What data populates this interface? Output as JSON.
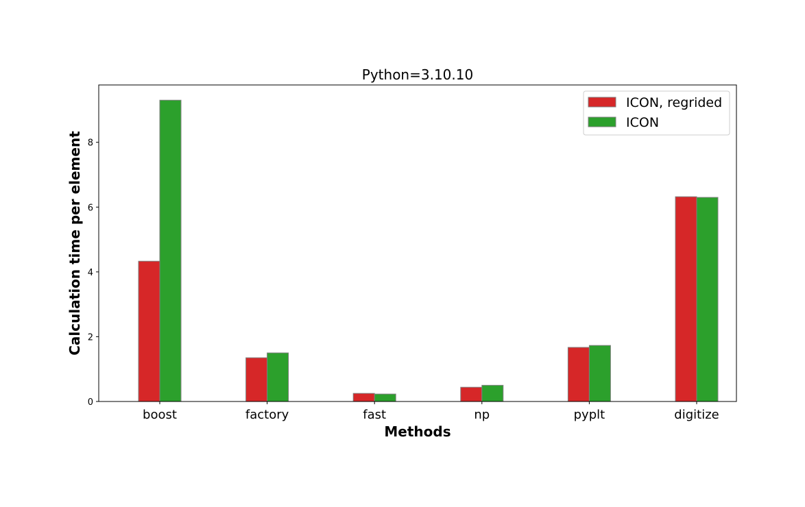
{
  "chart_data": {
    "type": "bar",
    "title": "Python=3.10.10",
    "xlabel": "Methods",
    "ylabel": "Calculation time per element",
    "categories": [
      "boost",
      "factory",
      "fast",
      "np",
      "pyplt",
      "digitize"
    ],
    "series": [
      {
        "name": "ICON, regrided",
        "color": "#d62728",
        "values": [
          4.33,
          1.35,
          0.25,
          0.44,
          1.67,
          6.32
        ]
      },
      {
        "name": "ICON",
        "color": "#2ca02c",
        "values": [
          9.3,
          1.5,
          0.23,
          0.5,
          1.73,
          6.3
        ]
      }
    ],
    "yticks": [
      0,
      2,
      4,
      6,
      8
    ],
    "ylim": [
      0,
      9.77
    ],
    "grid": false,
    "legend_position": "top-right"
  }
}
